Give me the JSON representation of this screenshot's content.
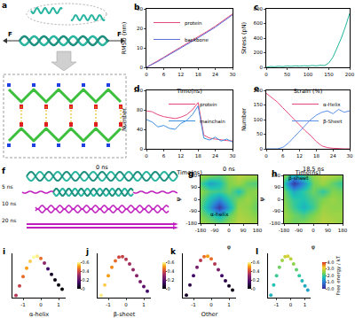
{
  "chart_data": [
    {
      "panel": "b",
      "type": "line",
      "xlabel": "Time(ns)",
      "ylabel": "RMSD (nm)",
      "x": [
        0,
        2,
        4,
        6,
        8,
        10,
        12,
        14,
        16,
        18,
        20,
        22,
        24,
        26,
        28,
        30
      ],
      "xlim": [
        0,
        30
      ],
      "xticks": [
        0,
        6,
        12,
        18,
        24,
        30
      ],
      "ylim": [
        0,
        30
      ],
      "yticks": [
        0,
        10,
        20,
        30
      ],
      "legend": "upper left",
      "series": [
        {
          "name": "protein",
          "color": "#e8497a",
          "values": [
            0,
            1.6,
            3.2,
            5.1,
            6.9,
            8.6,
            10.4,
            12.1,
            13.8,
            15.6,
            17.3,
            19.2,
            21.1,
            23.2,
            25.3,
            27.4
          ]
        },
        {
          "name": "backbone",
          "color": "#5b6fd6",
          "values": [
            0,
            1.4,
            3.0,
            4.8,
            6.6,
            8.3,
            10.0,
            11.7,
            13.4,
            15.1,
            16.9,
            18.7,
            20.6,
            22.7,
            24.8,
            26.9
          ]
        }
      ]
    },
    {
      "panel": "c",
      "type": "line",
      "xlabel": "Strain (%)",
      "ylabel": "Stress (pN)",
      "x": [
        0,
        10,
        20,
        30,
        40,
        50,
        60,
        70,
        80,
        90,
        100,
        110,
        120,
        130,
        140,
        150,
        160,
        170,
        180,
        190,
        200
      ],
      "xlim": [
        0,
        200
      ],
      "xticks": [
        0,
        50,
        100,
        150,
        200
      ],
      "ylim": [
        0,
        800
      ],
      "yticks": [
        0,
        200,
        400,
        600,
        800
      ],
      "series": [
        {
          "name": "stress",
          "color": "#1fb59a",
          "values": [
            0,
            12,
            8,
            15,
            10,
            18,
            14,
            20,
            16,
            22,
            18,
            25,
            20,
            28,
            24,
            60,
            140,
            260,
            400,
            560,
            740
          ]
        }
      ]
    },
    {
      "panel": "d",
      "type": "line",
      "xlabel": "Time(ns)",
      "ylabel": "Number",
      "x": [
        0,
        2,
        4,
        6,
        8,
        10,
        12,
        14,
        16,
        18,
        20,
        22,
        24,
        26,
        28,
        30
      ],
      "xlim": [
        0,
        30
      ],
      "xticks": [
        0,
        6,
        12,
        18,
        24,
        30
      ],
      "ylim": [
        0,
        120
      ],
      "yticks": [
        0,
        40,
        80,
        120
      ],
      "legend": "upper right",
      "series": [
        {
          "name": "protein",
          "color": "#e8497a",
          "values": [
            78,
            76,
            70,
            66,
            64,
            62,
            65,
            70,
            80,
            95,
            28,
            22,
            20,
            18,
            17,
            16
          ]
        },
        {
          "name": "mainchain",
          "color": "#3d8fe0",
          "values": [
            60,
            55,
            45,
            48,
            42,
            40,
            52,
            58,
            70,
            88,
            22,
            18,
            24,
            16,
            20,
            14
          ]
        }
      ]
    },
    {
      "panel": "e",
      "type": "line",
      "xlabel": "Time(ns)",
      "ylabel": "Number",
      "x": [
        0,
        2,
        4,
        6,
        8,
        10,
        12,
        14,
        16,
        18,
        20,
        22,
        24,
        26,
        28,
        30
      ],
      "xlim": [
        0,
        30
      ],
      "xticks": [
        0,
        6,
        12,
        18,
        24,
        30
      ],
      "ylim": [
        0,
        200
      ],
      "yticks": [
        0,
        50,
        100,
        150,
        200
      ],
      "legend": "upper right",
      "series": [
        {
          "name": "α-Helix",
          "color": "#e8497a",
          "values": [
            190,
            175,
            160,
            140,
            120,
            100,
            80,
            62,
            45,
            25,
            10,
            4,
            2,
            0,
            0,
            0
          ]
        },
        {
          "name": "β-Sheet",
          "color": "#5b8fe8",
          "values": [
            0,
            0,
            0,
            5,
            20,
            40,
            60,
            80,
            100,
            115,
            125,
            130,
            120,
            135,
            125,
            130
          ]
        }
      ]
    },
    {
      "panel": "g",
      "type": "heatmap",
      "title": "0 ns",
      "xlabel": "φ",
      "ylabel": "ψ",
      "color": "jet",
      "x": [
        -180,
        -120,
        -60,
        0,
        60,
        120,
        180
      ],
      "y": [
        -180,
        -120,
        -60,
        0,
        60,
        120,
        180
      ],
      "z": [
        [
          2.6,
          2.4,
          2.2,
          2.5,
          2.8,
          2.7,
          2.6
        ],
        [
          2.4,
          2.0,
          1.6,
          2.2,
          2.7,
          2.6,
          2.4
        ],
        [
          2.2,
          1.3,
          0.2,
          1.5,
          2.6,
          2.5,
          2.2
        ],
        [
          2.3,
          1.7,
          1.2,
          1.9,
          2.4,
          2.6,
          2.3
        ],
        [
          2.5,
          2.1,
          2.0,
          2.3,
          1.8,
          2.4,
          2.5
        ],
        [
          2.1,
          1.4,
          1.7,
          2.4,
          2.6,
          2.2,
          2.1
        ],
        [
          2.6,
          2.4,
          2.2,
          2.5,
          2.8,
          2.7,
          2.6
        ]
      ],
      "zlim": [
        0,
        4
      ],
      "xlim": [
        -180,
        180
      ],
      "ylim": [
        -180,
        180
      ],
      "xticks": [
        -180,
        -90,
        0,
        90,
        180
      ],
      "yticks": [
        -180,
        -90,
        0,
        90,
        180
      ],
      "annotations": [
        {
          "text": "α-helix",
          "x": -60,
          "y": -110
        }
      ]
    },
    {
      "panel": "h",
      "type": "heatmap",
      "title": "18.5 ns",
      "xlabel": "φ",
      "ylabel": "ψ",
      "color": "jet",
      "x": [
        -180,
        -120,
        -60,
        0,
        60,
        120,
        180
      ],
      "y": [
        -180,
        -120,
        -60,
        0,
        60,
        120,
        180
      ],
      "z": [
        [
          2.5,
          2.3,
          2.4,
          2.6,
          2.8,
          2.7,
          2.5
        ],
        [
          2.6,
          2.3,
          2.1,
          2.4,
          2.7,
          2.6,
          2.6
        ],
        [
          2.5,
          2.0,
          1.6,
          2.0,
          2.6,
          2.5,
          2.5
        ],
        [
          2.4,
          1.9,
          1.8,
          2.1,
          2.4,
          2.6,
          2.4
        ],
        [
          2.3,
          1.5,
          1.9,
          2.3,
          1.9,
          2.4,
          2.3
        ],
        [
          1.9,
          0.2,
          1.2,
          2.3,
          2.6,
          2.2,
          1.9
        ],
        [
          2.5,
          1.6,
          2.0,
          2.5,
          2.8,
          2.7,
          2.5
        ]
      ],
      "zlim": [
        0,
        4
      ],
      "xlim": [
        -180,
        180
      ],
      "ylim": [
        -180,
        180
      ],
      "xticks": [
        -180,
        -90,
        0,
        90,
        180
      ],
      "yticks": [
        -180,
        -90,
        0,
        90,
        180
      ],
      "annotations": [
        {
          "text": "β-sheet",
          "x": -90,
          "y": 160
        }
      ]
    },
    {
      "panel": "i",
      "type": "scatter",
      "xlabel": "α-helix",
      "color": "inferno",
      "tick_labels": "x",
      "x": [
        -1.4,
        -1.2,
        -1.0,
        -0.8,
        -0.6,
        -0.4,
        -0.2,
        0,
        0.2,
        0.4,
        0.6,
        0.8,
        1.0,
        1.2
      ],
      "values": [
        0.05,
        0.28,
        0.5,
        0.7,
        0.86,
        0.96,
        0.98,
        0.93,
        0.82,
        0.68,
        0.55,
        0.42,
        0.3,
        0.2
      ],
      "color_values": [
        0.35,
        0.38,
        0.45,
        0.5,
        0.55,
        0.6,
        0.58,
        0.45,
        0.3,
        0.15,
        0.05,
        0.02,
        0.01,
        0.0
      ],
      "xlim": [
        -1.6,
        1.4
      ],
      "xticks": [
        -1,
        0,
        1
      ],
      "ylim": [
        0,
        1.05
      ],
      "colorbar": {
        "range": [
          0,
          0.6
        ],
        "ticks": [
          0,
          0.2,
          0.4,
          0.6
        ]
      }
    },
    {
      "panel": "j",
      "type": "scatter",
      "xlabel": "β-sheet",
      "color": "inferno",
      "tick_labels": "x",
      "x": [
        -1.4,
        -1.2,
        -1.0,
        -0.8,
        -0.6,
        -0.4,
        -0.2,
        0,
        0.2,
        0.4,
        0.6,
        0.8,
        1.0,
        1.2
      ],
      "values": [
        0.05,
        0.3,
        0.52,
        0.72,
        0.87,
        0.96,
        0.97,
        0.91,
        0.8,
        0.66,
        0.52,
        0.38,
        0.26,
        0.15
      ],
      "color_values": [
        0.58,
        0.55,
        0.5,
        0.48,
        0.45,
        0.4,
        0.38,
        0.35,
        0.32,
        0.3,
        0.28,
        0.25,
        0.2,
        0.15
      ],
      "xlim": [
        -1.6,
        1.4
      ],
      "xticks": [
        -1,
        0,
        1
      ],
      "ylim": [
        0,
        1.05
      ],
      "colorbar": {
        "range": [
          0,
          0.6
        ],
        "ticks": [
          0,
          0.2,
          0.4,
          0.6
        ]
      }
    },
    {
      "panel": "k",
      "type": "scatter",
      "xlabel": "Other",
      "color": "inferno",
      "tick_labels": "x",
      "x": [
        -1.4,
        -1.2,
        -1.0,
        -0.8,
        -0.6,
        -0.4,
        -0.2,
        0,
        0.2,
        0.4,
        0.6,
        0.8,
        1.0,
        1.2
      ],
      "values": [
        0.06,
        0.3,
        0.52,
        0.72,
        0.88,
        0.97,
        0.98,
        0.92,
        0.8,
        0.66,
        0.52,
        0.4,
        0.28,
        0.18
      ],
      "color_values": [
        0.05,
        0.1,
        0.15,
        0.25,
        0.35,
        0.45,
        0.5,
        0.45,
        0.35,
        0.25,
        0.15,
        0.1,
        0.05,
        0.02
      ],
      "xlim": [
        -1.6,
        1.4
      ],
      "xticks": [
        -1,
        0,
        1
      ],
      "ylim": [
        0,
        1.05
      ],
      "colorbar": {
        "range": [
          0,
          0.6
        ],
        "ticks": [
          0,
          0.2,
          0.4,
          0.6
        ]
      }
    },
    {
      "panel": "l",
      "type": "scatter",
      "color": "jet",
      "tick_labels": "x",
      "x": [
        -1.4,
        -1.2,
        -1.0,
        -0.8,
        -0.6,
        -0.4,
        -0.2,
        0,
        0.2,
        0.4,
        0.6,
        0.8,
        1.0,
        1.2
      ],
      "values": [
        0.06,
        0.3,
        0.52,
        0.72,
        0.88,
        0.97,
        0.98,
        0.92,
        0.8,
        0.66,
        0.52,
        0.4,
        0.28,
        0.18
      ],
      "color_values": [
        1.6,
        1.8,
        2.0,
        2.3,
        2.6,
        2.9,
        3.0,
        2.8,
        2.5,
        2.2,
        1.9,
        1.7,
        1.5,
        1.4
      ],
      "xlim": [
        -1.6,
        1.4
      ],
      "xticks": [
        -1,
        0,
        1
      ],
      "ylim": [
        0,
        1.05
      ],
      "colorbar": {
        "title": "Free energy / kT",
        "range": [
          0,
          4
        ],
        "ticks": [
          {
            "value": 0,
            "label": "0.0"
          },
          {
            "value": 1,
            "label": "1.0"
          },
          {
            "value": 2,
            "label": "2.0"
          },
          {
            "value": 3,
            "label": "3.0"
          },
          {
            "value": 4,
            "label": "4.0"
          }
        ]
      }
    }
  ],
  "diagrams": {
    "a": {
      "label": "a",
      "force_labels": [
        "F",
        "F"
      ]
    },
    "f": {
      "label": "f",
      "time_labels": [
        "0 ns",
        "5 ns",
        "10 ns",
        "20 ns"
      ]
    }
  }
}
